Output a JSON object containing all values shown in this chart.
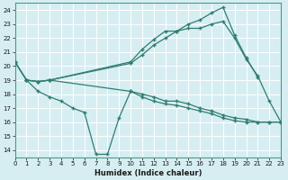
{
  "xlabel": "Humidex (Indice chaleur)",
  "background_color": "#d6eef2",
  "grid_color": "#b8dde4",
  "line_color": "#2e7d6e",
  "xlim": [
    0,
    23
  ],
  "ylim": [
    13.5,
    24.5
  ],
  "yticks": [
    14,
    15,
    16,
    17,
    18,
    19,
    20,
    21,
    22,
    23,
    24
  ],
  "xticks": [
    0,
    1,
    2,
    3,
    4,
    5,
    6,
    7,
    8,
    9,
    10,
    11,
    12,
    13,
    14,
    15,
    16,
    17,
    18,
    19,
    20,
    21,
    22,
    23
  ],
  "lines": [
    {
      "x": [
        0,
        1,
        2,
        3,
        10,
        11,
        12,
        13,
        14,
        15,
        16,
        17,
        18,
        19,
        20,
        21
      ],
      "y": [
        20.3,
        19.0,
        18.9,
        19.0,
        20.3,
        21.2,
        21.9,
        22.5,
        22.5,
        23.0,
        23.3,
        23.8,
        24.2,
        22.2,
        20.6,
        19.2
      ]
    },
    {
      "x": [
        0,
        1,
        2,
        3,
        10,
        11,
        12,
        13,
        14,
        15,
        16,
        17,
        18,
        19,
        20,
        21,
        22,
        23
      ],
      "y": [
        20.3,
        19.0,
        18.9,
        19.0,
        20.2,
        20.8,
        21.5,
        22.0,
        22.5,
        22.7,
        22.7,
        23.0,
        23.2,
        22.0,
        20.5,
        19.3,
        17.5,
        16.0
      ]
    },
    {
      "x": [
        0,
        1,
        2,
        3,
        10,
        11,
        12,
        13,
        14,
        15,
        16,
        17,
        18,
        19,
        20,
        21,
        22,
        23
      ],
      "y": [
        20.3,
        19.0,
        18.9,
        19.0,
        18.2,
        18.0,
        17.8,
        17.5,
        17.5,
        17.3,
        17.0,
        16.8,
        16.5,
        16.3,
        16.2,
        16.0,
        16.0,
        16.0
      ]
    },
    {
      "x": [
        1,
        2,
        3,
        4,
        5,
        6,
        7,
        8,
        9,
        10,
        11,
        12,
        13,
        14,
        15,
        16,
        17,
        18,
        19,
        20,
        21,
        22,
        23
      ],
      "y": [
        19.0,
        18.2,
        17.8,
        17.5,
        17.0,
        16.7,
        13.7,
        13.7,
        16.3,
        18.2,
        17.8,
        17.5,
        17.3,
        17.2,
        17.0,
        16.8,
        16.6,
        16.3,
        16.1,
        16.0,
        16.0,
        16.0,
        16.0
      ]
    }
  ]
}
